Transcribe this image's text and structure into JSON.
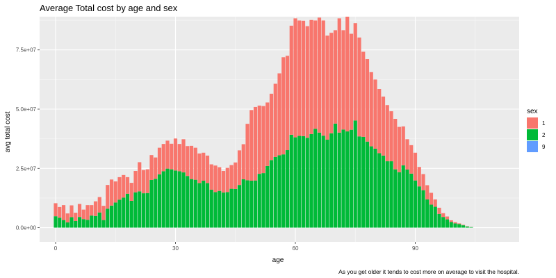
{
  "chart_data": {
    "type": "bar",
    "stacked": true,
    "title": "Average Total cost by age and sex",
    "xlabel": "age",
    "ylabel": "avg total cost",
    "caption": "As you get older it tends to cost more on average to visit the hospital.",
    "xlim": [
      -4,
      116
    ],
    "ylim": [
      -6000000,
      89000000
    ],
    "x_ticks": [
      0,
      30,
      60,
      90
    ],
    "x_tick_labels": [
      "0",
      "30",
      "60",
      "90"
    ],
    "y_ticks": [
      0,
      25000000,
      50000000,
      75000000
    ],
    "y_tick_labels": [
      "0.0e+00",
      "2.5e+07",
      "5.0e+07",
      "7.5e+07"
    ],
    "grid": true,
    "legend": {
      "title": "sex",
      "placement": "right"
    },
    "x": [
      0,
      1,
      2,
      3,
      4,
      5,
      6,
      7,
      8,
      9,
      10,
      11,
      12,
      13,
      14,
      15,
      16,
      17,
      18,
      19,
      20,
      21,
      22,
      23,
      24,
      25,
      26,
      27,
      28,
      29,
      30,
      31,
      32,
      33,
      34,
      35,
      36,
      37,
      38,
      39,
      40,
      41,
      42,
      43,
      44,
      45,
      46,
      47,
      48,
      49,
      50,
      51,
      52,
      53,
      54,
      55,
      56,
      57,
      58,
      59,
      60,
      61,
      62,
      63,
      64,
      65,
      66,
      67,
      68,
      69,
      70,
      71,
      72,
      73,
      74,
      75,
      76,
      77,
      78,
      79,
      80,
      81,
      82,
      83,
      84,
      85,
      86,
      87,
      88,
      89,
      90,
      91,
      92,
      93,
      94,
      95,
      96,
      97,
      98,
      99,
      100,
      101,
      102,
      103,
      104
    ],
    "series": [
      {
        "name": "1",
        "color": "#F8766D",
        "values": [
          5500000,
          4500000,
          6300000,
          3800000,
          5000000,
          3500000,
          5500000,
          4000000,
          6200000,
          4400000,
          6200000,
          6500000,
          6000000,
          10000000,
          11000000,
          8900000,
          9500000,
          9500000,
          7000000,
          7600000,
          9000000,
          12300000,
          9800000,
          10000000,
          10500000,
          9000000,
          11200000,
          11500000,
          11800000,
          10800000,
          13500000,
          11500000,
          14000000,
          12600000,
          14000000,
          13500000,
          12500000,
          11800000,
          11600000,
          10700000,
          11200000,
          10000000,
          9100000,
          10200000,
          10000000,
          11200000,
          14600000,
          14800000,
          23800000,
          29800000,
          31000000,
          28800000,
          28300000,
          26800000,
          28000000,
          30900000,
          34600000,
          41000000,
          39800000,
          46000000,
          50200000,
          48700000,
          48700000,
          47100000,
          48100000,
          45700000,
          48500000,
          48600000,
          43900000,
          42400000,
          39400000,
          48200000,
          41900000,
          48400000,
          40500000,
          41100000,
          41700000,
          35900000,
          34800000,
          31300000,
          29200000,
          27100000,
          24900000,
          23700000,
          21100000,
          21300000,
          19100000,
          16400000,
          12800000,
          12000000,
          11700000,
          8200000,
          6800000,
          6000000,
          5000000,
          3100000,
          2600000,
          1600000,
          1200000,
          700000,
          500000,
          300000,
          200000,
          100000,
          50000
        ]
      },
      {
        "name": "2",
        "color": "#00BA38",
        "values": [
          4800000,
          4200000,
          3200000,
          2200000,
          4400000,
          2800000,
          4500000,
          3600000,
          3300000,
          5100000,
          4900000,
          6400000,
          3200000,
          8000000,
          9300000,
          10600000,
          11800000,
          12700000,
          14300000,
          11300000,
          14900000,
          15300000,
          14500000,
          14600000,
          20100000,
          20600000,
          22500000,
          23800000,
          24900000,
          24600000,
          24100000,
          23800000,
          23300000,
          21800000,
          20500000,
          20200000,
          18800000,
          19800000,
          18800000,
          16000000,
          15000000,
          15500000,
          14800000,
          15000000,
          16400000,
          16300000,
          18000000,
          20400000,
          20000000,
          19800000,
          19900000,
          22700000,
          23000000,
          26000000,
          28500000,
          29800000,
          30500000,
          30900000,
          32700000,
          39200000,
          38100000,
          38700000,
          38600000,
          37900000,
          39500000,
          41700000,
          40100000,
          38800000,
          37100000,
          39800000,
          43900000,
          40100000,
          41400000,
          40600000,
          41300000,
          45200000,
          38500000,
          38300000,
          36300000,
          34300000,
          33300000,
          31400000,
          30400000,
          28000000,
          28000000,
          24600000,
          23400000,
          26300000,
          24500000,
          22800000,
          19900000,
          17400000,
          15800000,
          11900000,
          9700000,
          8800000,
          5800000,
          4500000,
          3500000,
          2400000,
          1800000,
          1500000,
          1000000,
          500000,
          250000
        ]
      },
      {
        "name": "9",
        "color": "#619CFF",
        "values": [
          0,
          0,
          0,
          0,
          0,
          0,
          0,
          0,
          0,
          0,
          0,
          0,
          0,
          0,
          0,
          0,
          0,
          0,
          0,
          0,
          0,
          0,
          0,
          0,
          0,
          0,
          0,
          0,
          0,
          0,
          0,
          0,
          0,
          0,
          0,
          0,
          0,
          0,
          0,
          0,
          0,
          0,
          0,
          0,
          0,
          0,
          0,
          0,
          0,
          0,
          0,
          0,
          0,
          0,
          0,
          0,
          0,
          0,
          0,
          0,
          0,
          0,
          0,
          0,
          0,
          0,
          0,
          0,
          0,
          0,
          0,
          0,
          0,
          0,
          0,
          0,
          0,
          0,
          0,
          0,
          0,
          0,
          0,
          0,
          0,
          0,
          0,
          0,
          0,
          0,
          0,
          0,
          0,
          0,
          0,
          0,
          0,
          0,
          0,
          0,
          0,
          0,
          0,
          0,
          0
        ]
      }
    ]
  }
}
